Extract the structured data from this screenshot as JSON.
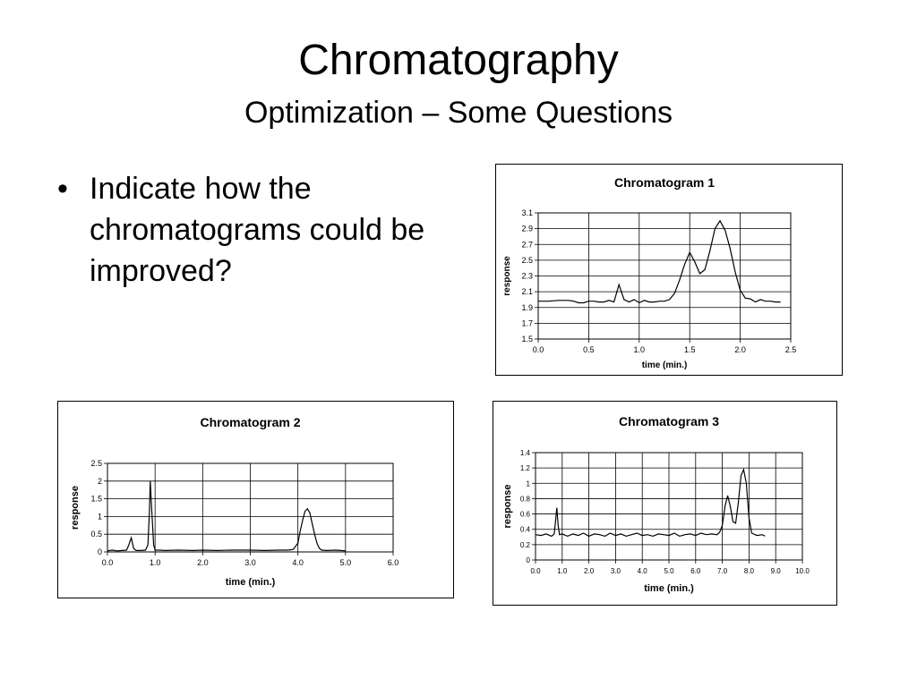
{
  "slide": {
    "title": "Chromatography",
    "subtitle": "Optimization – Some Questions",
    "bullets": [
      "Indicate how the chromatograms could be improved?"
    ]
  },
  "chart_data": [
    {
      "type": "line",
      "title": "Chromatogram 1",
      "xlabel": "time (min.)",
      "ylabel": "response",
      "xlim": [
        0,
        2.5
      ],
      "ylim": [
        1.5,
        3.1
      ],
      "xticks": [
        "0.0",
        "0.5",
        "1.0",
        "1.5",
        "2.0",
        "2.5"
      ],
      "yticks": [
        "1.5",
        "1.7",
        "1.9",
        "2.1",
        "2.3",
        "2.5",
        "2.7",
        "2.9",
        "3.1"
      ],
      "grid": true,
      "series": [
        {
          "x": [
            0,
            0.1,
            0.2,
            0.3,
            0.35,
            0.4,
            0.45,
            0.5,
            0.55,
            0.6,
            0.65,
            0.7,
            0.75,
            0.8,
            0.85,
            0.9,
            0.95,
            1.0,
            1.05,
            1.1,
            1.15,
            1.2,
            1.25,
            1.3,
            1.35,
            1.4,
            1.45,
            1.5,
            1.55,
            1.6,
            1.65,
            1.7,
            1.75,
            1.8,
            1.85,
            1.9,
            1.95,
            2.0,
            2.05,
            2.1,
            2.15,
            2.2,
            2.25,
            2.3,
            2.35,
            2.4
          ],
          "y": [
            1.98,
            1.98,
            1.99,
            1.99,
            1.98,
            1.96,
            1.96,
            1.98,
            1.98,
            1.97,
            1.97,
            1.99,
            1.97,
            2.19,
            2.0,
            1.97,
            2.0,
            1.96,
            1.99,
            1.97,
            1.97,
            1.98,
            1.98,
            2.0,
            2.08,
            2.25,
            2.45,
            2.6,
            2.48,
            2.33,
            2.38,
            2.62,
            2.9,
            3.0,
            2.88,
            2.65,
            2.35,
            2.12,
            2.02,
            2.01,
            1.97,
            2.0,
            1.98,
            1.98,
            1.97,
            1.97
          ]
        }
      ]
    },
    {
      "type": "line",
      "title": "Chromatogram 2",
      "xlabel": "time (min.)",
      "ylabel": "response",
      "xlim": [
        0,
        6
      ],
      "ylim": [
        0,
        2.5
      ],
      "xticks": [
        "0.0",
        "1.0",
        "2.0",
        "3.0",
        "4.0",
        "5.0",
        "6.0"
      ],
      "yticks": [
        "0",
        "0.5",
        "1",
        "1.5",
        "2",
        "2.5"
      ],
      "grid": true,
      "series": [
        {
          "x": [
            0,
            0.1,
            0.2,
            0.3,
            0.4,
            0.45,
            0.5,
            0.55,
            0.6,
            0.7,
            0.8,
            0.85,
            0.88,
            0.9,
            0.93,
            0.97,
            1.0,
            1.1,
            1.2,
            1.5,
            1.8,
            2.0,
            2.3,
            2.6,
            3.0,
            3.3,
            3.6,
            3.8,
            3.9,
            4.0,
            4.05,
            4.1,
            4.15,
            4.2,
            4.25,
            4.3,
            4.35,
            4.4,
            4.45,
            4.5,
            4.6,
            4.8,
            5.0
          ],
          "y": [
            0.03,
            0.05,
            0.03,
            0.04,
            0.05,
            0.2,
            0.4,
            0.1,
            0.04,
            0.04,
            0.05,
            0.2,
            1.1,
            2.0,
            1.2,
            0.2,
            0.05,
            0.05,
            0.04,
            0.05,
            0.04,
            0.05,
            0.04,
            0.05,
            0.05,
            0.04,
            0.05,
            0.05,
            0.07,
            0.25,
            0.6,
            0.9,
            1.15,
            1.22,
            1.1,
            0.8,
            0.5,
            0.25,
            0.1,
            0.05,
            0.04,
            0.05,
            0.03
          ]
        }
      ]
    },
    {
      "type": "line",
      "title": "Chromatogram 3",
      "xlabel": "time (min.)",
      "ylabel": "response",
      "xlim": [
        0,
        10
      ],
      "ylim": [
        0,
        1.4
      ],
      "xticks": [
        "0.0",
        "1.0",
        "2.0",
        "3.0",
        "4.0",
        "5.0",
        "6.0",
        "7.0",
        "8.0",
        "9.0",
        "10.0"
      ],
      "yticks": [
        "0",
        "0.2",
        "0.4",
        "0.6",
        "0.8",
        "1",
        "1.2",
        "1.4"
      ],
      "grid": true,
      "series": [
        {
          "x": [
            0,
            0.2,
            0.4,
            0.6,
            0.7,
            0.75,
            0.8,
            0.85,
            0.9,
            1.0,
            1.2,
            1.4,
            1.6,
            1.8,
            2.0,
            2.2,
            2.4,
            2.6,
            2.8,
            3.0,
            3.2,
            3.4,
            3.6,
            3.8,
            4.0,
            4.2,
            4.4,
            4.6,
            4.8,
            5.0,
            5.2,
            5.4,
            5.6,
            5.8,
            6.0,
            6.2,
            6.4,
            6.6,
            6.8,
            6.9,
            7.0,
            7.1,
            7.2,
            7.3,
            7.4,
            7.5,
            7.6,
            7.7,
            7.8,
            7.9,
            8.0,
            8.1,
            8.3,
            8.5,
            8.6
          ],
          "y": [
            0.33,
            0.32,
            0.34,
            0.31,
            0.34,
            0.5,
            0.68,
            0.45,
            0.33,
            0.34,
            0.31,
            0.34,
            0.32,
            0.35,
            0.31,
            0.34,
            0.33,
            0.31,
            0.35,
            0.32,
            0.34,
            0.31,
            0.33,
            0.35,
            0.32,
            0.33,
            0.31,
            0.34,
            0.33,
            0.32,
            0.35,
            0.31,
            0.33,
            0.34,
            0.32,
            0.35,
            0.33,
            0.34,
            0.33,
            0.36,
            0.45,
            0.7,
            0.84,
            0.7,
            0.5,
            0.48,
            0.75,
            1.1,
            1.18,
            1.0,
            0.55,
            0.35,
            0.32,
            0.33,
            0.31
          ]
        }
      ]
    }
  ]
}
